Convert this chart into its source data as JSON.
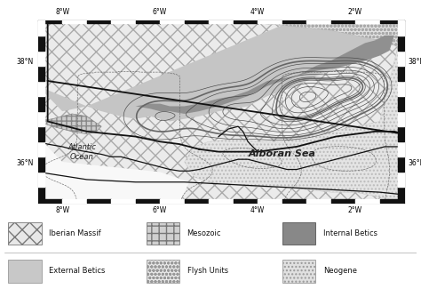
{
  "xlim": [
    -8.5,
    -1.0
  ],
  "ylim": [
    35.2,
    38.8
  ],
  "xticks": [
    -8,
    -6,
    -4,
    -2
  ],
  "yticks": [
    36,
    38
  ],
  "xtick_labels": [
    "8°W",
    "6°W",
    "4°W",
    "2°W"
  ],
  "ytick_labels_left": [
    "36°N",
    "38°N"
  ],
  "ytick_labels_right": [
    "36°N",
    "38°N"
  ],
  "background_color": "#ffffff",
  "map_bg_color": "#f0f0f0",
  "atlantic_label": "Atlantic\nOcean",
  "alboran_label": "Alboran Sea",
  "legend_items": [
    {
      "label": "Iberian Massif",
      "hatch": "xx",
      "fc": "#e8e8e8",
      "ec": "#777777"
    },
    {
      "label": "Mesozoic",
      "hatch": "++",
      "fc": "#d0d0d0",
      "ec": "#777777"
    },
    {
      "label": "Internal Betics",
      "hatch": "",
      "fc": "#888888",
      "ec": "#555555"
    },
    {
      "label": "External Betics",
      "hatch": "",
      "fc": "#c8c8c8",
      "ec": "#999999"
    },
    {
      "label": "Flysh Units",
      "hatch": "oooo",
      "fc": "#e8e8e8",
      "ec": "#999999"
    },
    {
      "label": "Neogene",
      "hatch": "....",
      "fc": "#e0e0e0",
      "ec": "#999999"
    }
  ]
}
